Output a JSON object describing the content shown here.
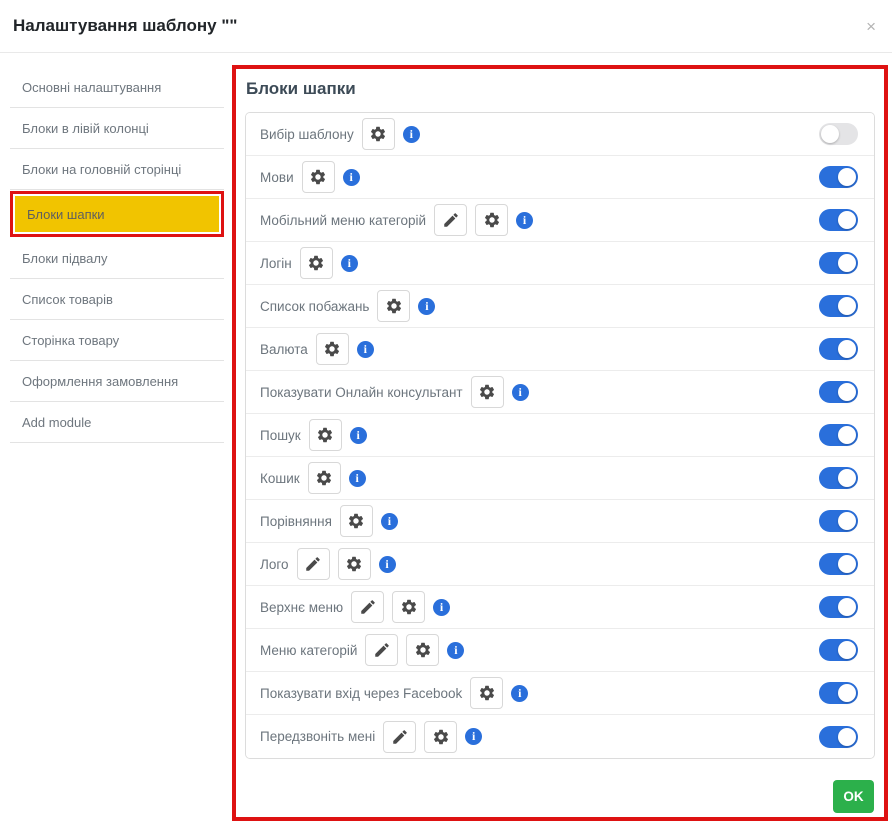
{
  "modal": {
    "title": "Налаштування шаблону \"\"",
    "close_glyph": "×"
  },
  "sidebar": {
    "items": [
      {
        "label": "Основні налаштування",
        "active": false
      },
      {
        "label": "Блоки в лівій колонці",
        "active": false
      },
      {
        "label": "Блоки на головній сторінці",
        "active": false
      },
      {
        "label": "Блоки шапки",
        "active": true
      },
      {
        "label": "Блоки підвалу",
        "active": false
      },
      {
        "label": "Список товарів",
        "active": false
      },
      {
        "label": "Сторінка товару",
        "active": false
      },
      {
        "label": "Оформлення замовлення",
        "active": false
      },
      {
        "label": "Add module",
        "active": false
      }
    ]
  },
  "panel": {
    "title": "Блоки шапки",
    "ok_label": "OK",
    "rows": [
      {
        "label": "Вибір шаблону",
        "has_edit": false,
        "has_settings": true,
        "has_info": true,
        "enabled": false
      },
      {
        "label": "Мови",
        "has_edit": false,
        "has_settings": true,
        "has_info": true,
        "enabled": true
      },
      {
        "label": "Мобільний меню категорій",
        "has_edit": true,
        "has_settings": true,
        "has_info": true,
        "enabled": true
      },
      {
        "label": "Логін",
        "has_edit": false,
        "has_settings": true,
        "has_info": true,
        "enabled": true
      },
      {
        "label": "Список побажань",
        "has_edit": false,
        "has_settings": true,
        "has_info": true,
        "enabled": true
      },
      {
        "label": "Валюта",
        "has_edit": false,
        "has_settings": true,
        "has_info": true,
        "enabled": true
      },
      {
        "label": "Показувати Онлайн консультант",
        "has_edit": false,
        "has_settings": true,
        "has_info": true,
        "enabled": true
      },
      {
        "label": "Пошук",
        "has_edit": false,
        "has_settings": true,
        "has_info": true,
        "enabled": true
      },
      {
        "label": "Кошик",
        "has_edit": false,
        "has_settings": true,
        "has_info": true,
        "enabled": true
      },
      {
        "label": "Порівняння",
        "has_edit": false,
        "has_settings": true,
        "has_info": true,
        "enabled": true
      },
      {
        "label": "Лого",
        "has_edit": true,
        "has_settings": true,
        "has_info": true,
        "enabled": true
      },
      {
        "label": "Верхнє меню",
        "has_edit": true,
        "has_settings": true,
        "has_info": true,
        "enabled": true
      },
      {
        "label": "Меню категорій",
        "has_edit": true,
        "has_settings": true,
        "has_info": true,
        "enabled": true
      },
      {
        "label": "Показувати вхід через Facebook",
        "has_edit": false,
        "has_settings": true,
        "has_info": true,
        "enabled": true
      },
      {
        "label": "Передзвоніть мені",
        "has_edit": true,
        "has_settings": true,
        "has_info": true,
        "enabled": true
      }
    ]
  },
  "icons": {
    "info_glyph": "i"
  },
  "colors": {
    "accent_blue": "#2a6fdb",
    "selected_yellow": "#f1c400",
    "annotation_red": "#de1212",
    "ok_green": "#2cb04b",
    "toggle_off_gray": "#e4e4e6"
  }
}
